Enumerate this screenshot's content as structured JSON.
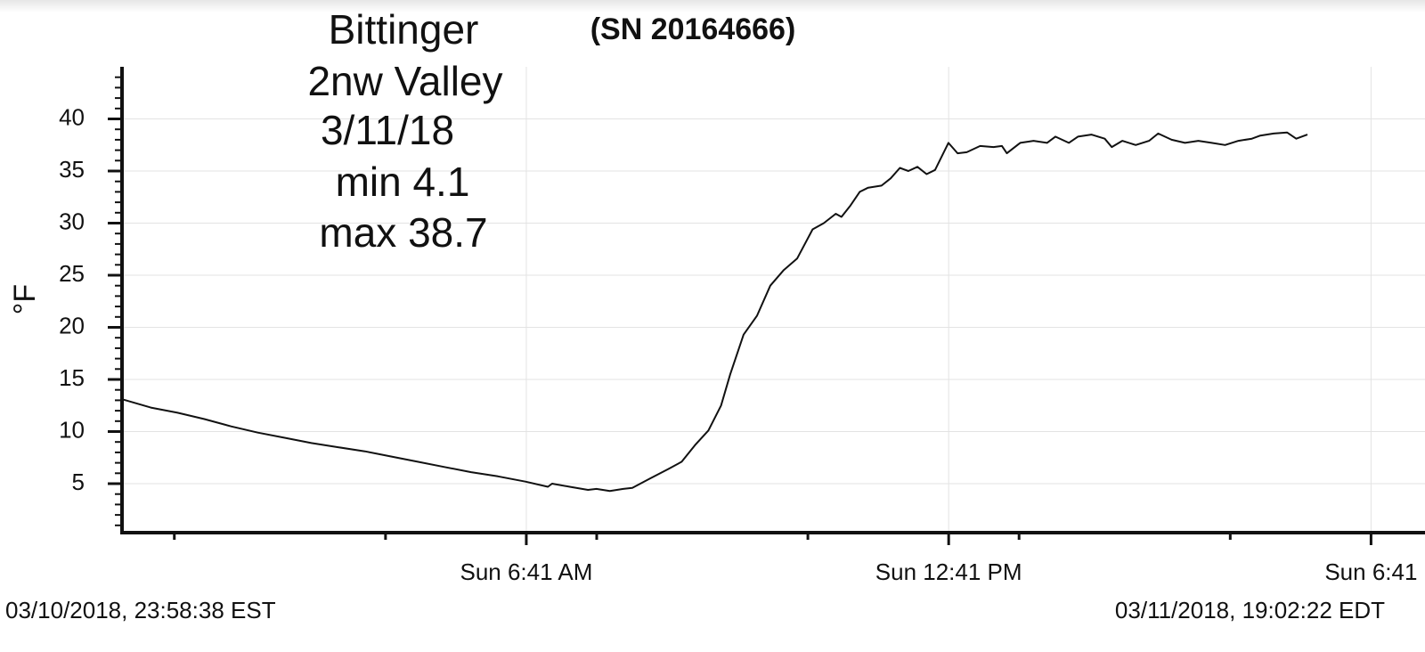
{
  "chart_data": {
    "type": "line",
    "title": "(SN 20164666)",
    "annotation_lines": [
      "Bittinger",
      "2nw Valley",
      "3/11/18",
      "min 4.1",
      "max 38.7"
    ],
    "y_label": "°F",
    "range_start": "03/10/2018, 23:58:38 EST",
    "range_end": "03/11/2018, 19:02:22 EDT",
    "x": [
      0.94,
      1.35,
      1.73,
      2.11,
      2.49,
      2.87,
      3.25,
      3.63,
      4.01,
      4.39,
      4.77,
      5.14,
      5.52,
      5.9,
      6.28,
      6.67,
      6.99,
      7.05,
      7.3,
      7.56,
      7.68,
      7.87,
      8.06,
      8.19,
      8.44,
      8.7,
      8.89,
      9.08,
      9.27,
      9.45,
      9.58,
      9.77,
      9.96,
      10.15,
      10.34,
      10.53,
      10.75,
      10.91,
      11.08,
      11.16,
      11.29,
      11.42,
      11.54,
      11.73,
      11.86,
      11.99,
      12.11,
      12.24,
      12.37,
      12.49,
      12.68,
      12.81,
      12.94,
      13.13,
      13.32,
      13.44,
      13.51,
      13.7,
      13.89,
      14.08,
      14.2,
      14.39,
      14.52,
      14.71,
      14.9,
      15.0,
      15.15,
      15.34,
      15.53,
      15.66,
      15.85,
      16.04,
      16.23,
      16.42,
      16.61,
      16.8,
      16.99,
      17.11,
      17.3,
      17.49,
      17.62,
      17.78
    ],
    "series": [
      {
        "name": "Temperature",
        "color": "#111111",
        "values": [
          13.1,
          12.3,
          11.8,
          11.2,
          10.5,
          9.9,
          9.4,
          8.9,
          8.5,
          8.1,
          7.6,
          7.1,
          6.6,
          6.1,
          5.7,
          5.2,
          4.7,
          5.0,
          4.7,
          4.4,
          4.5,
          4.3,
          4.5,
          4.6,
          5.5,
          6.4,
          7.1,
          8.7,
          10.1,
          12.5,
          15.5,
          19.3,
          21.1,
          24.0,
          25.5,
          26.6,
          29.4,
          30.0,
          30.9,
          30.6,
          31.7,
          33.0,
          33.4,
          33.6,
          34.3,
          35.3,
          35.0,
          35.4,
          34.7,
          35.1,
          37.7,
          36.7,
          36.8,
          37.4,
          37.3,
          37.4,
          36.7,
          37.7,
          37.9,
          37.7,
          38.3,
          37.7,
          38.3,
          38.5,
          38.1,
          37.3,
          37.9,
          37.5,
          37.9,
          38.6,
          38.0,
          37.7,
          37.9,
          37.7,
          37.5,
          37.9,
          38.1,
          38.4,
          38.6,
          38.7,
          38.1,
          38.5
        ]
      }
    ],
    "xlim": [
      0.94,
      19.45
    ],
    "xticks": [
      {
        "value": 6.6833,
        "label": "Sun 6:41 AM"
      },
      {
        "value": 12.6833,
        "label": "Sun 12:41 PM"
      },
      {
        "value": 18.6833,
        "label": "Sun 6:41"
      }
    ],
    "xminorticks": [
      1.6833,
      4.6833,
      7.6833,
      10.6833,
      13.6833,
      16.6833
    ],
    "ylim": [
      0.3,
      45
    ],
    "yticks": [
      5,
      10,
      15,
      20,
      25,
      30,
      35,
      40
    ],
    "yminorticks": [
      1,
      2,
      3,
      4,
      6,
      7,
      8,
      9,
      11,
      12,
      13,
      14,
      16,
      17,
      18,
      19,
      21,
      22,
      23,
      24,
      26,
      27,
      28,
      29,
      31,
      32,
      33,
      34,
      36,
      37,
      38,
      39,
      41,
      42,
      43,
      44
    ],
    "grid": true
  }
}
